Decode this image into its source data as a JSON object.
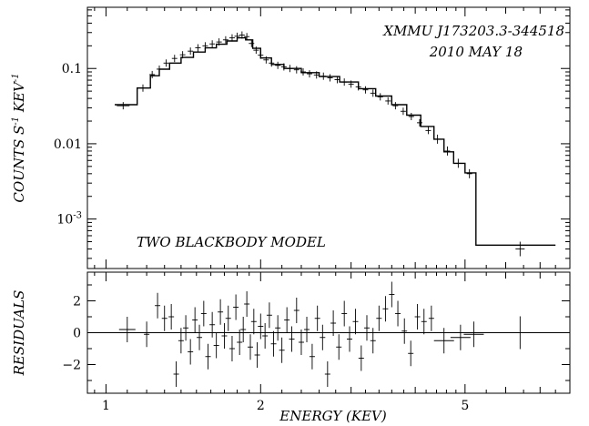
{
  "chart_data": [
    {
      "type": "scatter",
      "panel": "spectrum",
      "annotations": {
        "source": "XMMU J173203.3-344518",
        "date": "2010 MAY 18",
        "model": "TWO BLACKBODY MODEL"
      },
      "xlabel": "",
      "ylabel": "COUNTS S",
      "ylabel_sup1": "-1",
      "ylabel_mid": " KEV",
      "ylabel_sup2": "-1",
      "xscale": "log",
      "yscale": "log",
      "xlim": [
        0.92,
        8.0
      ],
      "ylim": [
        0.00022,
        0.65
      ],
      "y_ticks": [
        {
          "value": 0.1,
          "label": "0.1"
        },
        {
          "value": 0.01,
          "label": "0.01"
        },
        {
          "value": 0.001,
          "label": "10",
          "sup": "-3"
        }
      ],
      "data": {
        "x": [
          1.08,
          1.18,
          1.23,
          1.27,
          1.31,
          1.36,
          1.41,
          1.46,
          1.51,
          1.56,
          1.61,
          1.66,
          1.71,
          1.76,
          1.8,
          1.84,
          1.88,
          1.92,
          1.96,
          2.0,
          2.05,
          2.1,
          2.16,
          2.22,
          2.28,
          2.35,
          2.42,
          2.49,
          2.57,
          2.65,
          2.73,
          2.82,
          2.91,
          3.0,
          3.1,
          3.2,
          3.31,
          3.42,
          3.54,
          3.66,
          3.79,
          3.93,
          4.08,
          4.24,
          4.42,
          4.62,
          4.85,
          5.1,
          6.4
        ],
        "y": [
          0.032,
          0.055,
          0.083,
          0.098,
          0.118,
          0.136,
          0.152,
          0.17,
          0.188,
          0.2,
          0.212,
          0.225,
          0.24,
          0.255,
          0.268,
          0.278,
          0.265,
          0.215,
          0.175,
          0.15,
          0.13,
          0.118,
          0.11,
          0.105,
          0.1,
          0.096,
          0.09,
          0.085,
          0.082,
          0.079,
          0.075,
          0.071,
          0.066,
          0.062,
          0.057,
          0.052,
          0.047,
          0.042,
          0.037,
          0.032,
          0.027,
          0.023,
          0.019,
          0.015,
          0.0115,
          0.008,
          0.0055,
          0.004,
          0.0004
        ]
      },
      "model_step": [
        [
          1.04,
          1.15,
          0.033
        ],
        [
          1.15,
          1.22,
          0.055
        ],
        [
          1.22,
          1.27,
          0.08
        ],
        [
          1.27,
          1.33,
          0.098
        ],
        [
          1.33,
          1.4,
          0.118
        ],
        [
          1.4,
          1.48,
          0.14
        ],
        [
          1.48,
          1.56,
          0.165
        ],
        [
          1.56,
          1.64,
          0.188
        ],
        [
          1.64,
          1.72,
          0.21
        ],
        [
          1.72,
          1.8,
          0.232
        ],
        [
          1.8,
          1.87,
          0.255
        ],
        [
          1.87,
          1.93,
          0.24
        ],
        [
          1.93,
          2.0,
          0.185
        ],
        [
          2.0,
          2.1,
          0.138
        ],
        [
          2.1,
          2.22,
          0.113
        ],
        [
          2.22,
          2.4,
          0.1
        ],
        [
          2.4,
          2.6,
          0.088
        ],
        [
          2.6,
          2.85,
          0.078
        ],
        [
          2.85,
          3.1,
          0.066
        ],
        [
          3.1,
          3.35,
          0.054
        ],
        [
          3.35,
          3.6,
          0.043
        ],
        [
          3.6,
          3.85,
          0.033
        ],
        [
          3.85,
          4.1,
          0.024
        ],
        [
          4.1,
          4.35,
          0.017
        ],
        [
          4.35,
          4.55,
          0.0115
        ],
        [
          4.55,
          4.75,
          0.0078
        ],
        [
          4.75,
          5.0,
          0.0055
        ],
        [
          5.0,
          5.25,
          0.0041
        ],
        [
          5.25,
          7.5,
          0.00045
        ]
      ]
    },
    {
      "type": "scatter",
      "panel": "residuals",
      "xlabel": "ENERGY (KEV)",
      "ylabel": "RESIDUALS",
      "xscale": "log",
      "xlim": [
        0.92,
        8.0
      ],
      "ylim": [
        -3.8,
        3.8
      ],
      "x_ticks": [
        {
          "value": 1,
          "label": "1"
        },
        {
          "value": 2,
          "label": "2"
        },
        {
          "value": 5,
          "label": "5"
        }
      ],
      "y_ticks": [
        {
          "value": 2,
          "label": "2"
        },
        {
          "value": 0,
          "label": "0"
        },
        {
          "value": -2,
          "label": "−2"
        }
      ],
      "zero_line": 0,
      "data": {
        "x": [
          1.1,
          1.2,
          1.26,
          1.3,
          1.34,
          1.37,
          1.4,
          1.43,
          1.46,
          1.49,
          1.52,
          1.55,
          1.58,
          1.61,
          1.64,
          1.67,
          1.7,
          1.73,
          1.76,
          1.79,
          1.82,
          1.85,
          1.88,
          1.91,
          1.94,
          1.97,
          2.0,
          2.04,
          2.08,
          2.12,
          2.16,
          2.2,
          2.25,
          2.3,
          2.35,
          2.4,
          2.46,
          2.52,
          2.58,
          2.64,
          2.7,
          2.77,
          2.84,
          2.91,
          2.98,
          3.06,
          3.14,
          3.22,
          3.31,
          3.4,
          3.5,
          3.6,
          3.7,
          3.81,
          3.92,
          4.04,
          4.16,
          4.3,
          4.55,
          4.9,
          5.2,
          6.4
        ],
        "y": [
          0.2,
          -0.1,
          1.7,
          0.9,
          1.0,
          -2.6,
          -0.5,
          0.3,
          -1.2,
          0.8,
          -0.3,
          1.2,
          -1.5,
          0.5,
          -0.8,
          1.3,
          -0.2,
          0.9,
          -1.0,
          1.6,
          -0.6,
          0.2,
          1.8,
          -0.9,
          0.7,
          -1.4,
          0.4,
          -0.2,
          1.1,
          -0.7,
          0.3,
          -1.1,
          0.8,
          -0.4,
          1.4,
          -0.6,
          0.2,
          -1.5,
          0.9,
          -0.3,
          -2.6,
          0.6,
          -0.9,
          1.2,
          -0.4,
          0.7,
          -1.6,
          0.3,
          -0.5,
          0.9,
          1.5,
          2.4,
          1.2,
          0.1,
          -1.3,
          1.0,
          0.7,
          0.9,
          -0.5,
          -0.3,
          -0.1,
          0.0
        ]
      }
    }
  ]
}
